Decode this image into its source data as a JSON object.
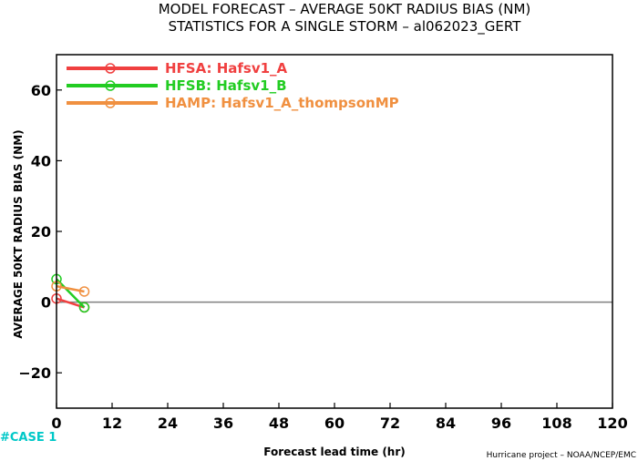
{
  "title_line1": "MODEL FORECAST – AVERAGE 50KT RADIUS BIAS (NM)",
  "title_line2": "STATISTICS FOR A SINGLE STORM – al062023_GERT",
  "cases_label": "#CASE 1",
  "footer": "Hurricane project – NOAA/NCEP/EMC",
  "colors": {
    "zero_line": "#7f7f7f",
    "cases": "#00c8c8"
  },
  "chart_data": {
    "type": "line",
    "xlabel": "Forecast lead time (hr)",
    "ylabel": "AVERAGE 50KT RADIUS BIAS (NM)",
    "xlim": [
      0,
      120
    ],
    "ylim": [
      -30,
      70
    ],
    "xticks": [
      0,
      12,
      24,
      36,
      48,
      60,
      72,
      84,
      96,
      108,
      120
    ],
    "yticks": [
      -20,
      0,
      20,
      40,
      60
    ],
    "legend_position": "top-left",
    "grid": false,
    "series": [
      {
        "name": "HFSA: Hafsv1_A",
        "color": "#f04040",
        "x": [
          0,
          6
        ],
        "y": [
          1,
          -1.5
        ]
      },
      {
        "name": "HFSB: Hafsv1_B",
        "color": "#22cc22",
        "x": [
          0,
          6
        ],
        "y": [
          6.5,
          -1.5
        ]
      },
      {
        "name": "HAMP: Hafsv1_A_thompsonMP",
        "color": "#f09040",
        "x": [
          0,
          6
        ],
        "y": [
          4.5,
          3
        ]
      }
    ]
  }
}
